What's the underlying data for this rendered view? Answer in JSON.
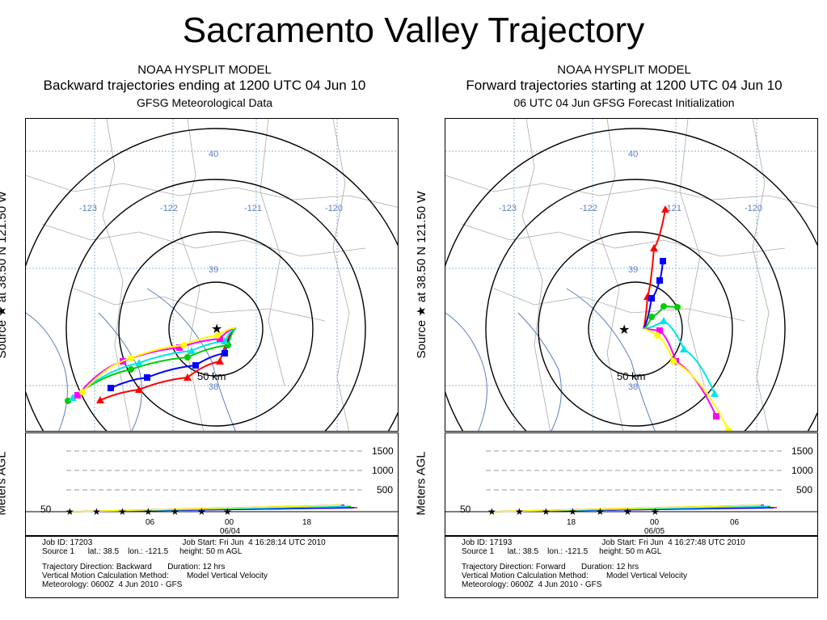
{
  "slide_title": "Sacramento Valley Trajectory",
  "panels": [
    {
      "id": "backward",
      "header": {
        "model": "NOAA HYSPLIT MODEL",
        "line2": "Backward trajectories ending at 1200 UTC 04 Jun 10",
        "line3": "GFSG Meteorological Data"
      },
      "source_axis_label": "Source ★ at 38.50 N 121.50 W",
      "height_axis_label": "Meters AGL",
      "map": {
        "lat_labels": [
          "40",
          "39",
          "38"
        ],
        "lon_labels": [
          "-123",
          "-122",
          "-121",
          "-120"
        ],
        "range_label": "50 km",
        "trajectories": [
          {
            "color": "#ff0000",
            "marker": "triangle",
            "points": [
              [
                260,
                258
              ],
              [
                240,
                300
              ],
              [
                200,
                320
              ],
              [
                140,
                335
              ],
              [
                92,
                348
              ]
            ]
          },
          {
            "color": "#0000ff",
            "marker": "square",
            "points": [
              [
                260,
                258
              ],
              [
                246,
                290
              ],
              [
                210,
                305
              ],
              [
                150,
                320
              ],
              [
                105,
                333
              ]
            ]
          },
          {
            "color": "#00cc00",
            "marker": "circle",
            "points": [
              [
                260,
                258
              ],
              [
                250,
                280
              ],
              [
                200,
                295
              ],
              [
                130,
                310
              ],
              [
                52,
                349
              ]
            ]
          },
          {
            "color": "#00e5e5",
            "marker": "triangle",
            "points": [
              [
                260,
                258
              ],
              [
                246,
                275
              ],
              [
                205,
                287
              ],
              [
                140,
                302
              ],
              [
                58,
                345
              ]
            ]
          },
          {
            "color": "#ff00ff",
            "marker": "square",
            "points": [
              [
                260,
                258
              ],
              [
                240,
                272
              ],
              [
                190,
                283
              ],
              [
                120,
                300
              ],
              [
                64,
                342
              ]
            ]
          },
          {
            "color": "#ffff00",
            "marker": "circle",
            "points": [
              [
                260,
                258
              ],
              [
                237,
                268
              ],
              [
                195,
                280
              ],
              [
                130,
                296
              ],
              [
                70,
                338
              ]
            ]
          }
        ]
      },
      "height_chart": {
        "y_ticks": [
          "1500",
          "1000",
          "500"
        ],
        "baseline_label": "50",
        "x_ticks": [
          "06",
          "00",
          "18"
        ],
        "date_label": "06/04"
      },
      "info": {
        "job_id": "Job ID: 17203",
        "job_start": "Job Start: Fri Jun  4 16:28:14 UTC 2010",
        "source": "Source 1      lat.: 38.5    lon.: -121.5     height: 50 m AGL",
        "direction": "Trajectory Direction: Backward       Duration: 12 hrs",
        "vertical": "Vertical Motion Calculation Method:        Model Vertical Velocity",
        "meteorology": "Meteorology: 0600Z  4 Jun 2010 - GFS"
      }
    },
    {
      "id": "forward",
      "header": {
        "model": "NOAA HYSPLIT MODEL",
        "line2": "Forward trajectories starting at 1200 UTC 04 Jun 10",
        "line3": "06 UTC 04 Jun    GFSG  Forecast Initialization"
      },
      "source_axis_label": "Source ★ at 38.50 N 121.50 W",
      "height_axis_label": "Meters AGL",
      "map": {
        "lat_labels": [
          "40",
          "39",
          "38"
        ],
        "lon_labels": [
          "-123",
          "-122",
          "-121",
          "-120"
        ],
        "range_label": "50 km",
        "trajectories": [
          {
            "color": "#ff0000",
            "marker": "triangle",
            "points": [
              [
                245,
                260
              ],
              [
                250,
                220
              ],
              [
                258,
                160
              ],
              [
                272,
                112
              ]
            ]
          },
          {
            "color": "#0000ff",
            "marker": "square",
            "points": [
              [
                245,
                260
              ],
              [
                255,
                222
              ],
              [
                265,
                200
              ],
              [
                269,
                176
              ]
            ]
          },
          {
            "color": "#00cc00",
            "marker": "circle",
            "points": [
              [
                245,
                260
              ],
              [
                255,
                245
              ],
              [
                270,
                232
              ],
              [
                287,
                233
              ]
            ]
          },
          {
            "color": "#00e5e5",
            "marker": "triangle",
            "points": [
              [
                245,
                260
              ],
              [
                270,
                250
              ],
              [
                295,
                285
              ],
              [
                333,
                340
              ]
            ]
          },
          {
            "color": "#ff00ff",
            "marker": "square",
            "points": [
              [
                245,
                260
              ],
              [
                265,
                262
              ],
              [
                285,
                300
              ],
              [
                335,
                368
              ]
            ]
          },
          {
            "color": "#ffff00",
            "marker": "circle",
            "points": [
              [
                245,
                260
              ],
              [
                262,
                268
              ],
              [
                282,
                300
              ],
              [
                350,
                385
              ]
            ]
          }
        ]
      },
      "height_chart": {
        "y_ticks": [
          "1500",
          "1000",
          "500"
        ],
        "baseline_label": "50",
        "x_ticks": [
          "18",
          "00",
          "06"
        ],
        "date_label": "06/05"
      },
      "info": {
        "job_id": "Job ID: 17193",
        "job_start": "Job Start: Fri Jun  4 16:27:48 UTC 2010",
        "source": "Source 1      lat.: 38.5    lon.: -121.5     height: 50 m AGL",
        "direction": "Trajectory Direction: Forward       Duration: 12 hrs",
        "vertical": "Vertical Motion Calculation Method:        Model Vertical Velocity",
        "meteorology": "Meteorology: 0600Z  4 Jun 2010 - GFS"
      }
    }
  ]
}
